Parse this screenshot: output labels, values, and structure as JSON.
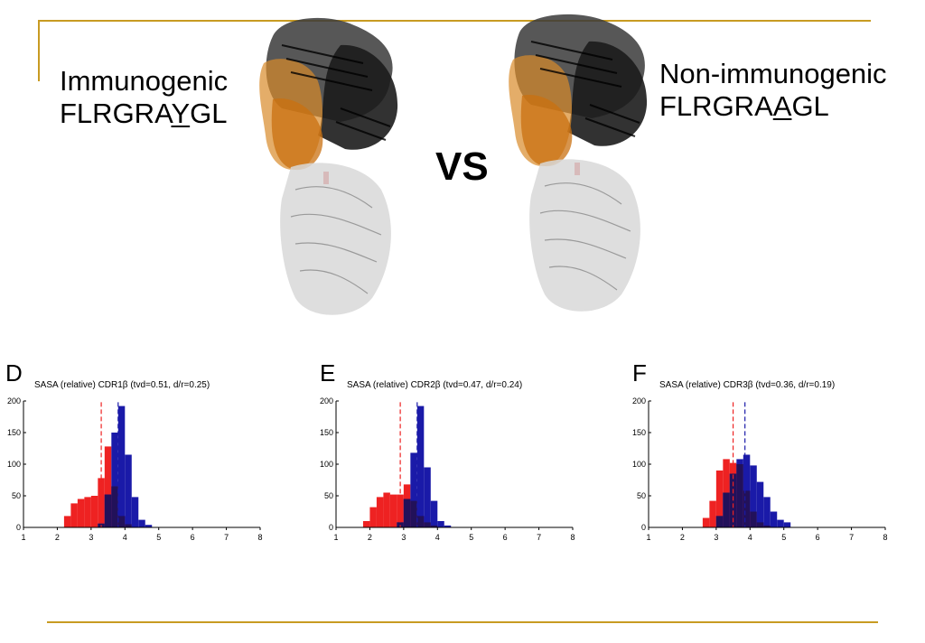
{
  "slide": {
    "left_label": {
      "line1": "Immunogenic",
      "seq_prefix": "FLRGRA",
      "seq_mut": "Y",
      "seq_suffix": "GL"
    },
    "right_label": {
      "line1": "Non-immunogenic",
      "seq_prefix": "FLRGRA",
      "seq_mut": "A",
      "seq_suffix": "GL"
    },
    "vs": "VS",
    "accent_color": "#c89b22"
  },
  "colors": {
    "immunogenic": "#ee2222",
    "non_immunogenic": "#1a1aa8",
    "overlap": "#22115a"
  },
  "chart_data": [
    {
      "type": "bar",
      "panel": "D",
      "title": "SASA (relative) CDR1β (tvd=0.51, d/r=0.25)",
      "xlim": [
        1,
        8
      ],
      "ylim": [
        0,
        200
      ],
      "xticks": [
        "1",
        "2",
        "3",
        "4",
        "5",
        "6",
        "7",
        "8"
      ],
      "yticks": [
        "0",
        "50",
        "100",
        "150",
        "200"
      ],
      "bin_width": 0.2,
      "series": [
        {
          "color": "red",
          "bins": [
            [
              2.2,
              18
            ],
            [
              2.4,
              38
            ],
            [
              2.6,
              45
            ],
            [
              2.8,
              48
            ],
            [
              3.0,
              50
            ],
            [
              3.2,
              78
            ],
            [
              3.4,
              128
            ],
            [
              3.6,
              65
            ],
            [
              3.8,
              18
            ],
            [
              4.0,
              5
            ]
          ],
          "mean": 3.3
        },
        {
          "color": "blue",
          "bins": [
            [
              3.2,
              6
            ],
            [
              3.4,
              52
            ],
            [
              3.6,
              150
            ],
            [
              3.8,
              192
            ],
            [
              4.0,
              115
            ],
            [
              4.2,
              48
            ],
            [
              4.4,
              12
            ],
            [
              4.6,
              4
            ]
          ],
          "mean": 3.8
        }
      ]
    },
    {
      "type": "bar",
      "panel": "E",
      "title": "SASA (relative) CDR2β (tvd=0.47, d/r=0.24)",
      "xlim": [
        1,
        8
      ],
      "ylim": [
        0,
        200
      ],
      "xticks": [
        "1",
        "2",
        "3",
        "4",
        "5",
        "6",
        "7",
        "8"
      ],
      "yticks": [
        "0",
        "50",
        "100",
        "150",
        "200"
      ],
      "bin_width": 0.2,
      "series": [
        {
          "color": "red",
          "bins": [
            [
              1.8,
              10
            ],
            [
              2.0,
              32
            ],
            [
              2.2,
              48
            ],
            [
              2.4,
              55
            ],
            [
              2.6,
              52
            ],
            [
              2.8,
              52
            ],
            [
              3.0,
              68
            ],
            [
              3.2,
              42
            ],
            [
              3.4,
              18
            ],
            [
              3.6,
              8
            ],
            [
              3.8,
              3
            ]
          ],
          "mean": 2.9
        },
        {
          "color": "blue",
          "bins": [
            [
              2.8,
              8
            ],
            [
              3.0,
              45
            ],
            [
              3.2,
              118
            ],
            [
              3.4,
              192
            ],
            [
              3.6,
              95
            ],
            [
              3.8,
              42
            ],
            [
              4.0,
              10
            ],
            [
              4.2,
              3
            ]
          ],
          "mean": 3.4
        }
      ]
    },
    {
      "type": "bar",
      "panel": "F",
      "title": "SASA (relative) CDR3β (tvd=0.36, d/r=0.19)",
      "xlim": [
        1,
        8
      ],
      "ylim": [
        0,
        200
      ],
      "xticks": [
        "1",
        "2",
        "3",
        "4",
        "5",
        "6",
        "7",
        "8"
      ],
      "yticks": [
        "0",
        "50",
        "100",
        "150",
        "200"
      ],
      "bin_width": 0.2,
      "series": [
        {
          "color": "red",
          "bins": [
            [
              2.6,
              15
            ],
            [
              2.8,
              42
            ],
            [
              3.0,
              90
            ],
            [
              3.2,
              108
            ],
            [
              3.4,
              102
            ],
            [
              3.6,
              100
            ],
            [
              3.8,
              58
            ],
            [
              4.0,
              25
            ],
            [
              4.2,
              8
            ],
            [
              4.4,
              3
            ]
          ],
          "mean": 3.5
        },
        {
          "color": "blue",
          "bins": [
            [
              3.0,
              18
            ],
            [
              3.2,
              55
            ],
            [
              3.4,
              85
            ],
            [
              3.6,
              108
            ],
            [
              3.8,
              115
            ],
            [
              4.0,
              98
            ],
            [
              4.2,
              72
            ],
            [
              4.4,
              48
            ],
            [
              4.6,
              25
            ],
            [
              4.8,
              12
            ],
            [
              5.0,
              8
            ]
          ],
          "mean": 3.85
        }
      ]
    }
  ]
}
